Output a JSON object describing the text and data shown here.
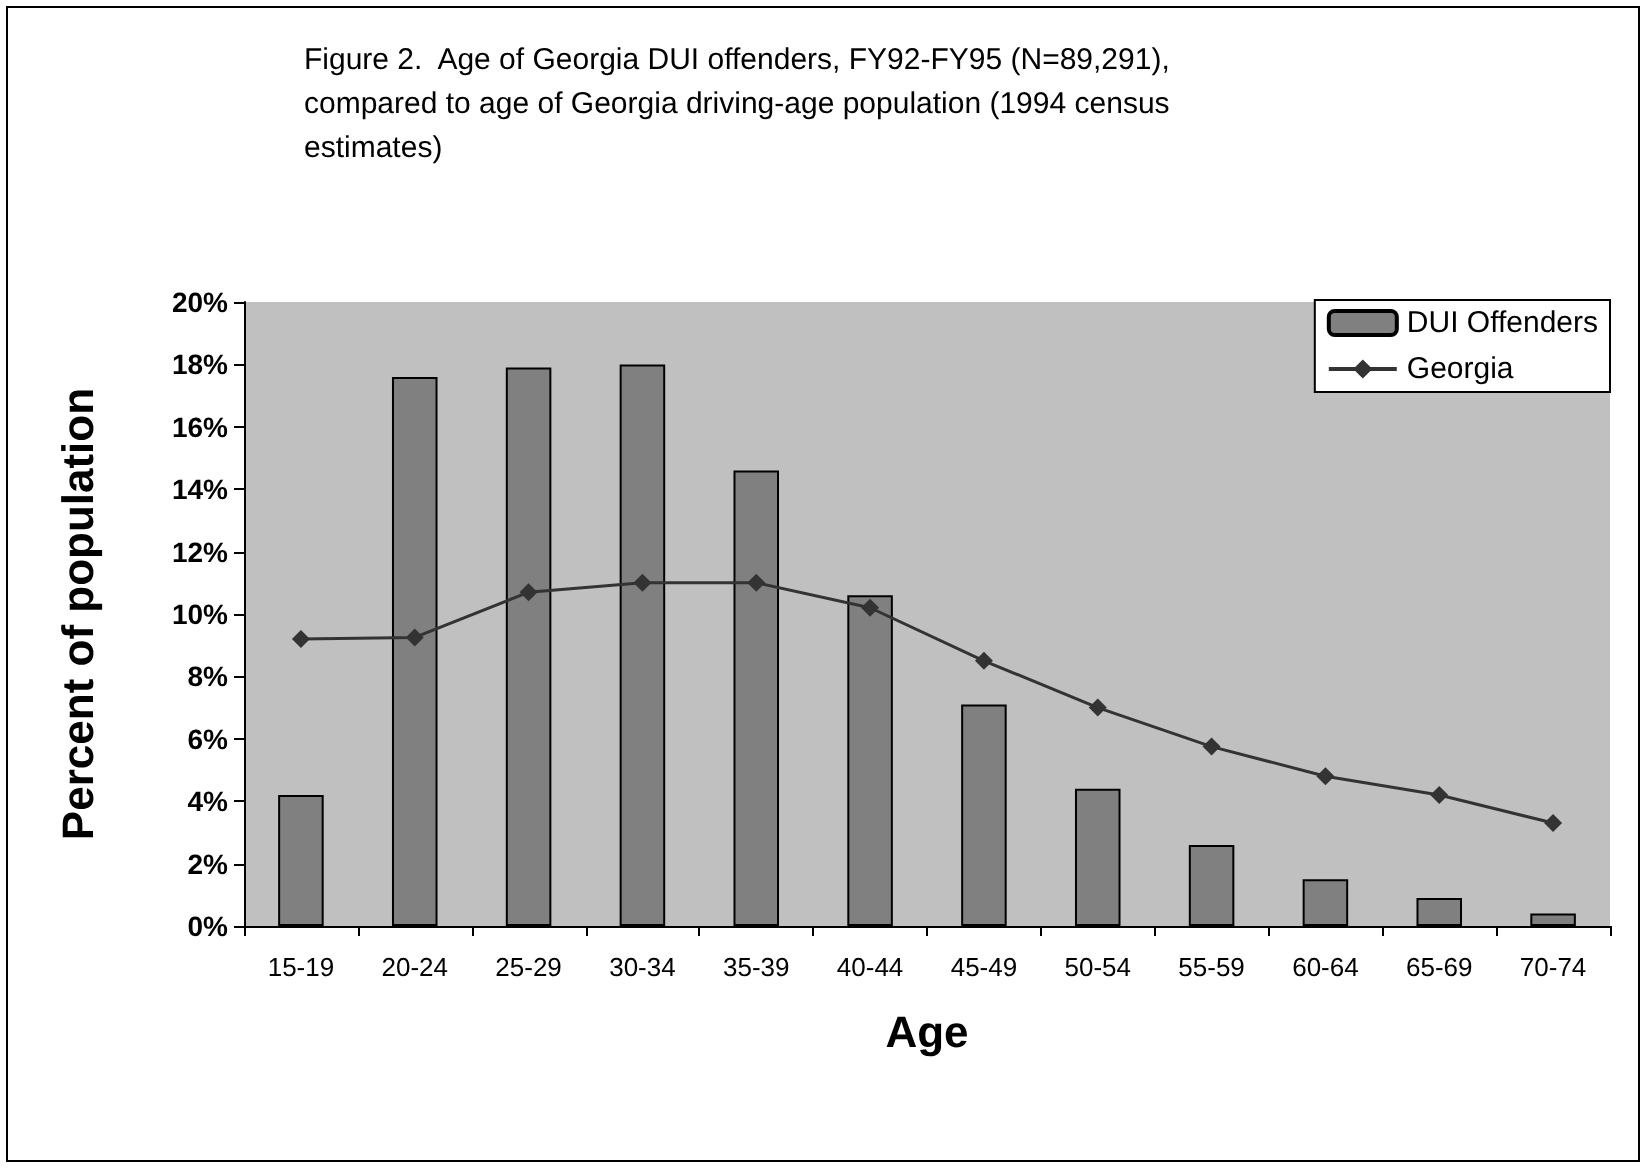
{
  "chart_data": {
    "type": "bar",
    "title": "Figure 2.  Age of Georgia DUI offenders, FY92-FY95 (N=89,291), compared to age of Georgia driving-age population (1994 census estimates)",
    "xlabel": "Age",
    "ylabel": "Percent of population",
    "categories": [
      "15-19",
      "20-24",
      "25-29",
      "30-34",
      "35-39",
      "40-44",
      "45-49",
      "50-54",
      "55-59",
      "60-64",
      "65-69",
      "70-74"
    ],
    "series": [
      {
        "name": "DUI Offenders",
        "color": "#808080",
        "values": [
          4.2,
          17.6,
          17.9,
          18.0,
          14.6,
          10.6,
          7.1,
          4.4,
          2.6,
          1.5,
          0.9,
          0.4
        ]
      },
      {
        "name": "Georgia",
        "type": "line",
        "color": "#333333",
        "marker": "diamond",
        "values": [
          9.2,
          9.25,
          10.7,
          11.0,
          11.0,
          10.2,
          8.5,
          7.0,
          5.75,
          4.8,
          4.2,
          3.3
        ]
      }
    ],
    "ylim": [
      0,
      20
    ],
    "yticks": [
      {
        "value": 0,
        "label": "0%"
      },
      {
        "value": 2,
        "label": "2%"
      },
      {
        "value": 4,
        "label": "4%"
      },
      {
        "value": 6,
        "label": "6%"
      },
      {
        "value": 8,
        "label": "8%"
      },
      {
        "value": 10,
        "label": "10%"
      },
      {
        "value": 12,
        "label": "12%"
      },
      {
        "value": 14,
        "label": "14%"
      },
      {
        "value": 16,
        "label": "16%"
      },
      {
        "value": 18,
        "label": "18%"
      },
      {
        "value": 20,
        "label": "20%"
      }
    ],
    "grid": false,
    "legend": "top right"
  }
}
